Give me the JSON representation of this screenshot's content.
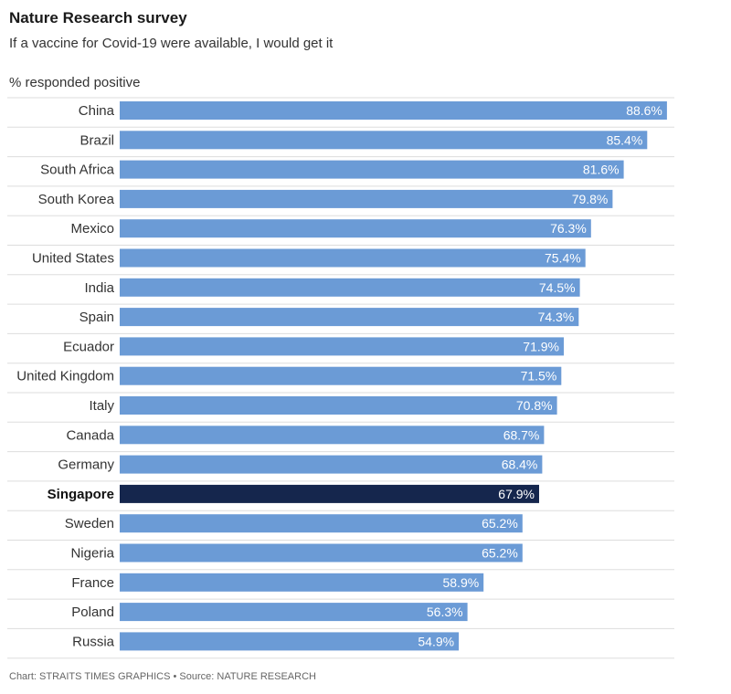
{
  "header": {
    "title": "Nature Research survey",
    "subtitle": "If a vaccine for Covid-19 were available, I would get it",
    "units_label": "% responded positive"
  },
  "footer": {
    "credit": "Chart: STRAITS TIMES GRAPHICS • Source: NATURE RESEARCH"
  },
  "colors": {
    "bar": "#6b9bd6",
    "highlight_bar": "#15264d",
    "row_divider": "#dddddd",
    "value_text": "#ffffff"
  },
  "chart_data": {
    "type": "bar",
    "orientation": "horizontal",
    "title": "Nature Research survey",
    "subtitle": "If a vaccine for Covid-19 were available, I would get it",
    "xlabel": "% responded positive",
    "ylabel": "",
    "xlim": [
      0,
      100
    ],
    "value_suffix": "%",
    "highlight": "Singapore",
    "categories": [
      "China",
      "Brazil",
      "South Africa",
      "South Korea",
      "Mexico",
      "United States",
      "India",
      "Spain",
      "Ecuador",
      "United Kingdom",
      "Italy",
      "Canada",
      "Germany",
      "Singapore",
      "Sweden",
      "Nigeria",
      "France",
      "Poland",
      "Russia"
    ],
    "values": [
      88.6,
      85.4,
      81.6,
      79.8,
      76.3,
      75.4,
      74.5,
      74.3,
      71.9,
      71.5,
      70.8,
      68.7,
      68.4,
      67.9,
      65.2,
      65.2,
      58.9,
      56.3,
      54.9
    ]
  }
}
